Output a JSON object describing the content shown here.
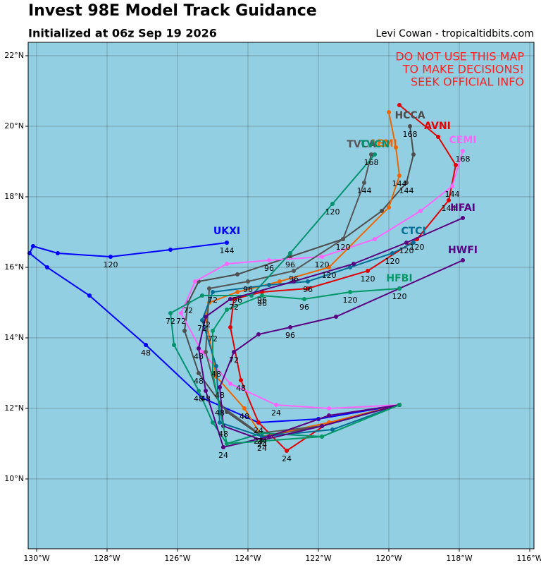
{
  "chart_data": {
    "type": "line",
    "title": "Invest 98E Model Track Guidance",
    "subtitle": "Initialized at 06z Sep 19 2026",
    "credit": "Levi Cowan - tropicaltidbits.com",
    "annotation": [
      "DO NOT USE THIS MAP",
      "TO MAKE DECISIONS!",
      "SEEK OFFICIAL INFO"
    ],
    "annotation_color": "#ff2020",
    "background": "#93cfe3",
    "grid": true,
    "xlim": [
      -130.24,
      -115.88
    ],
    "ylim": [
      8.02,
      22.38
    ],
    "xticks": [
      {
        "value": -130,
        "label": "130°W"
      },
      {
        "value": -128,
        "label": "128°W"
      },
      {
        "value": -126,
        "label": "126°W"
      },
      {
        "value": -124,
        "label": "124°W"
      },
      {
        "value": -122,
        "label": "122°W"
      },
      {
        "value": -120,
        "label": "120°W"
      },
      {
        "value": -118,
        "label": "118°W"
      },
      {
        "value": -116,
        "label": "116°W"
      }
    ],
    "yticks": [
      {
        "value": 10,
        "label": "10°N"
      },
      {
        "value": 12,
        "label": "12°N"
      },
      {
        "value": 14,
        "label": "14°N"
      },
      {
        "value": 16,
        "label": "16°N"
      },
      {
        "value": 18,
        "label": "18°N"
      },
      {
        "value": 20,
        "label": "20°N"
      },
      {
        "value": 22,
        "label": "22°N"
      }
    ],
    "series": [
      {
        "name": "UKXI",
        "color": "#0000ff",
        "x": [
          -119.7,
          -122.0,
          -123.7,
          -125.3,
          -126.9,
          -128.5,
          -129.7,
          -130.2,
          -130.1,
          -129.4,
          -127.9,
          -126.2,
          -124.6
        ],
        "y": [
          12.1,
          11.7,
          11.6,
          12.3,
          13.8,
          15.2,
          16.0,
          16.4,
          16.6,
          16.4,
          16.3,
          16.5,
          16.7
        ],
        "point_labels": [
          null,
          null,
          "24",
          null,
          "48",
          null,
          null,
          null,
          null,
          null,
          "120",
          null,
          "144"
        ]
      },
      {
        "name": "HCCA",
        "color": "#4d4d4d",
        "x": [
          -119.7,
          -121.9,
          -123.6,
          -124.6,
          -125.4,
          -125.8,
          -125.7,
          -125.4,
          -124.3,
          -122.8,
          -121.3,
          -120.2,
          -119.5,
          -119.3,
          -119.4
        ],
        "y": [
          12.1,
          11.5,
          11.2,
          11.9,
          13.0,
          14.2,
          15.0,
          15.6,
          15.8,
          16.3,
          16.8,
          17.6,
          18.4,
          19.2,
          20.0
        ],
        "point_labels": [
          null,
          null,
          "24",
          null,
          "48",
          null,
          "72",
          null,
          null,
          "96",
          null,
          null,
          "144",
          null,
          "168"
        ]
      },
      {
        "name": "AVNI",
        "color": "#e00000",
        "x": [
          -119.7,
          -121.7,
          -122.9,
          -123.7,
          -124.2,
          -124.5,
          -124.4,
          -123.6,
          -122.3,
          -120.6,
          -119.2,
          -118.3,
          -118.1,
          -118.6,
          -119.7
        ],
        "y": [
          12.1,
          11.6,
          10.8,
          11.6,
          12.8,
          14.3,
          15.1,
          15.3,
          15.4,
          15.9,
          16.8,
          17.9,
          18.9,
          19.7,
          20.6
        ],
        "point_labels": [
          null,
          null,
          "24",
          null,
          "48",
          null,
          "72",
          "96",
          null,
          "120",
          "120",
          "144",
          null,
          null,
          null
        ]
      },
      {
        "name": "CEMI",
        "color": "#ff66ff",
        "x": [
          -119.7,
          -121.7,
          -123.2,
          -124.5,
          -125.3,
          -125.9,
          -125.5,
          -124.6,
          -123.4,
          -121.9,
          -120.4,
          -119.1,
          -118.2,
          -117.9
        ],
        "y": [
          12.1,
          12.0,
          12.1,
          12.7,
          13.6,
          14.7,
          15.6,
          16.1,
          16.2,
          16.3,
          16.8,
          17.6,
          18.3,
          19.3
        ],
        "point_labels": [
          null,
          null,
          "24",
          null,
          null,
          "72",
          null,
          null,
          "96",
          "120",
          null,
          null,
          "144",
          "168"
        ]
      },
      {
        "name": "AEMI",
        "color": "#ee6600",
        "x": [
          -119.7,
          -121.7,
          -123.6,
          -124.1,
          -124.9,
          -125.2,
          -125.1,
          -124.3,
          -123.1,
          -121.7,
          -120.0,
          -119.7,
          -119.8,
          -120.0
        ],
        "y": [
          12.1,
          11.6,
          11.2,
          12.0,
          12.9,
          14.6,
          15.0,
          15.3,
          15.6,
          16.0,
          17.7,
          18.6,
          19.4,
          20.4
        ],
        "point_labels": [
          null,
          null,
          "24",
          "48",
          null,
          "72",
          null,
          "96",
          null,
          "120",
          null,
          "144",
          null,
          null
        ]
      },
      {
        "name": "TVCA",
        "color": "#555555",
        "x": [
          -119.7,
          -121.9,
          -123.7,
          -124.8,
          -125.2,
          -125.1,
          -124.0,
          -122.7,
          -121.3,
          -120.7,
          -120.5
        ],
        "y": [
          12.1,
          11.5,
          11.3,
          12.1,
          13.6,
          15.4,
          15.6,
          15.9,
          16.8,
          18.4,
          19.2
        ],
        "point_labels": [
          null,
          null,
          "24",
          "48",
          null,
          null,
          "96",
          "96",
          "120",
          "144",
          "168"
        ]
      },
      {
        "name": "TVCN",
        "color": "#00916e",
        "x": [
          -119.7,
          -121.9,
          -123.6,
          -124.6,
          -125.0,
          -125.4,
          -126.1,
          -126.2,
          -125.3,
          -123.9,
          -122.8,
          -121.6,
          -120.4
        ],
        "y": [
          12.1,
          11.2,
          11.3,
          11.0,
          11.6,
          12.5,
          13.8,
          14.7,
          15.2,
          15.2,
          16.4,
          17.8,
          19.2
        ],
        "point_labels": [
          null,
          null,
          "24",
          null,
          null,
          "48",
          null,
          "72",
          null,
          null,
          null,
          "120",
          null
        ]
      },
      {
        "name": "CTCI",
        "color": "#006e96",
        "x": [
          -119.7,
          -121.6,
          -123.6,
          -124.8,
          -124.9,
          -125.3,
          -125.0,
          -123.4,
          -122.3,
          -121.1,
          -119.9,
          -119.3
        ],
        "y": [
          12.1,
          11.4,
          11.2,
          11.6,
          13.2,
          14.5,
          15.3,
          15.5,
          15.6,
          16.0,
          16.4,
          16.7
        ],
        "point_labels": [
          null,
          null,
          "24",
          null,
          "48",
          "72",
          "72",
          null,
          "96",
          null,
          "120",
          null
        ]
      },
      {
        "name": "HFAI",
        "color": "#5a0082",
        "x": [
          -119.7,
          -121.7,
          -123.4,
          -124.7,
          -125.2,
          -125.4,
          -125.2,
          -124.5,
          -122.7,
          -121.0,
          -119.5,
          -117.9
        ],
        "y": [
          12.1,
          11.8,
          11.2,
          10.9,
          12.5,
          13.7,
          14.6,
          15.1,
          15.6,
          16.1,
          16.7,
          17.4
        ],
        "point_labels": [
          null,
          null,
          null,
          "24",
          "48",
          "48",
          null,
          null,
          null,
          null,
          "120",
          null
        ]
      },
      {
        "name": "HWFI",
        "color": "#5a0082",
        "x": [
          -119.7,
          -121.9,
          -123.6,
          -124.7,
          -124.8,
          -124.4,
          -123.7,
          -122.8,
          -121.5,
          -119.7,
          -117.9
        ],
        "y": [
          12.1,
          11.5,
          11.1,
          11.5,
          12.6,
          13.6,
          14.1,
          14.3,
          14.6,
          15.4,
          16.2
        ],
        "point_labels": [
          null,
          null,
          "24",
          "48",
          "48",
          "72",
          null,
          "96",
          null,
          null,
          null
        ]
      },
      {
        "name": "HFBI",
        "color": "#009966",
        "x": [
          -119.7,
          -121.9,
          -124.6,
          -125.0,
          -125.0,
          -124.6,
          -123.6,
          -122.4,
          -121.1,
          -119.7
        ],
        "y": [
          12.1,
          11.2,
          11.0,
          13.0,
          14.2,
          14.8,
          15.2,
          15.1,
          15.3,
          15.4
        ],
        "point_labels": [
          null,
          null,
          null,
          null,
          "72",
          null,
          "96",
          "96",
          "120",
          "120"
        ]
      }
    ]
  }
}
